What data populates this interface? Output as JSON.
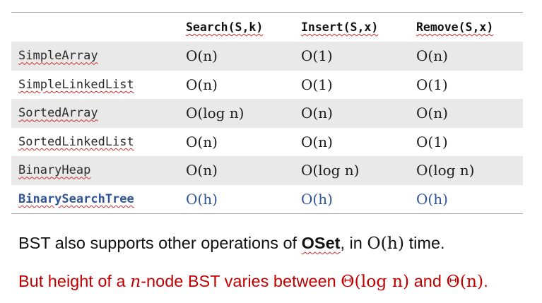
{
  "table": {
    "headers": [
      "",
      "Search(S,k)",
      "Insert(S,x)",
      "Remove(S,x)"
    ],
    "rows": [
      {
        "name": "SimpleArray",
        "search": "O(n)",
        "insert": "O(1)",
        "remove": "O(n)",
        "highlight": false
      },
      {
        "name": "SimpleLinkedList",
        "search": "O(n)",
        "insert": "O(1)",
        "remove": "O(1)",
        "highlight": false
      },
      {
        "name": "SortedArray",
        "search": "O(log n)",
        "insert": "O(n)",
        "remove": "O(n)",
        "highlight": false
      },
      {
        "name": "SortedLinkedList",
        "search": "O(n)",
        "insert": "O(n)",
        "remove": "O(1)",
        "highlight": false
      },
      {
        "name": "BinaryHeap",
        "search": "O(n)",
        "insert": "O(log n)",
        "remove": "O(log n)",
        "highlight": false
      },
      {
        "name": "BinarySearchTree",
        "search": "O(h)",
        "insert": "O(h)",
        "remove": "O(h)",
        "highlight": true
      }
    ]
  },
  "notes": {
    "line1": {
      "text_a": "BST also supports other operations of ",
      "oset": "OSet",
      "text_b": ", in ",
      "math": "O(h)",
      "text_c": " time."
    },
    "line2": {
      "text_a": "But height of a ",
      "n": "n",
      "text_b": "-node BST varies between ",
      "theta1": "Θ(log n)",
      "text_c": " and ",
      "theta2": "Θ(n)",
      "text_d": "."
    }
  },
  "colors": {
    "highlight_blue": "#2f5496",
    "note_red": "#c00000",
    "stripe_gray": "#e9e9e9"
  }
}
